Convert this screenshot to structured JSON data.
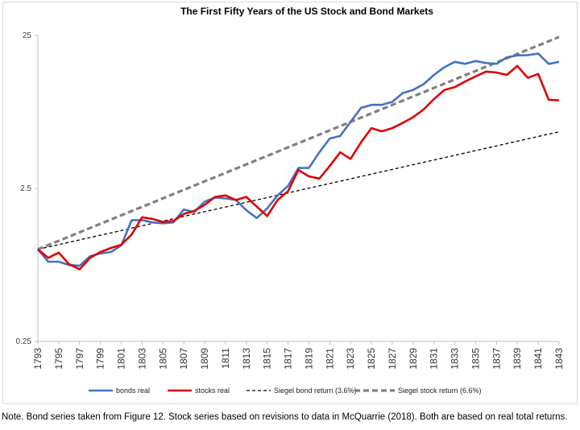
{
  "chart_data": {
    "type": "line",
    "title": "The First Fifty Years of the US Stock and Bond Markets",
    "yscale": "log",
    "ylim": [
      0.25,
      25
    ],
    "yticks": [
      {
        "value": 25,
        "label": "25"
      },
      {
        "value": 2.5,
        "label": "2.5"
      },
      {
        "value": 0.25,
        "label": "0.25"
      }
    ],
    "xlim": [
      1793,
      1843
    ],
    "xticks": [
      "1793",
      "1795",
      "1797",
      "1799",
      "1801",
      "1803",
      "1805",
      "1807",
      "1809",
      "1811",
      "1813",
      "1815",
      "1817",
      "1819",
      "1821",
      "1823",
      "1825",
      "1827",
      "1829",
      "1831",
      "1833",
      "1835",
      "1837",
      "1839",
      "1841",
      "1843"
    ],
    "grid": false,
    "legend_position": "bottom",
    "years": [
      1793,
      1794,
      1795,
      1796,
      1797,
      1798,
      1799,
      1800,
      1801,
      1802,
      1803,
      1804,
      1805,
      1806,
      1807,
      1808,
      1809,
      1810,
      1811,
      1812,
      1813,
      1814,
      1815,
      1816,
      1817,
      1818,
      1819,
      1820,
      1821,
      1822,
      1823,
      1824,
      1825,
      1826,
      1827,
      1828,
      1829,
      1830,
      1831,
      1832,
      1833,
      1834,
      1835,
      1836,
      1837,
      1838,
      1839,
      1840,
      1841,
      1842,
      1843
    ],
    "series": [
      {
        "name": "bonds real",
        "color": "#4472c4",
        "style": "solid",
        "values": [
          1.0,
          0.83,
          0.83,
          0.79,
          0.78,
          0.9,
          0.94,
          0.96,
          1.06,
          1.55,
          1.55,
          1.5,
          1.48,
          1.5,
          1.82,
          1.75,
          2.05,
          2.18,
          2.15,
          2.1,
          1.8,
          1.6,
          1.85,
          2.25,
          2.6,
          3.4,
          3.4,
          4.3,
          5.3,
          5.5,
          6.8,
          8.4,
          8.8,
          8.8,
          9.2,
          10.5,
          11.0,
          12.0,
          13.8,
          15.5,
          16.8,
          16.3,
          17.0,
          16.5,
          16.3,
          18.0,
          18.5,
          18.6,
          19.0,
          16.3,
          16.8
        ]
      },
      {
        "name": "stocks real",
        "color": "#e00000",
        "style": "solid",
        "values": [
          1.0,
          0.88,
          0.95,
          0.8,
          0.74,
          0.88,
          0.96,
          1.02,
          1.07,
          1.25,
          1.62,
          1.58,
          1.51,
          1.53,
          1.7,
          1.78,
          1.95,
          2.2,
          2.25,
          2.1,
          2.2,
          1.9,
          1.65,
          2.1,
          2.4,
          3.3,
          3.0,
          2.9,
          3.5,
          4.3,
          3.9,
          5.0,
          6.2,
          5.9,
          6.2,
          6.7,
          7.3,
          8.2,
          9.6,
          11.0,
          11.5,
          12.5,
          13.5,
          14.5,
          14.3,
          13.8,
          15.8,
          13.2,
          14.0,
          9.5,
          9.4
        ]
      },
      {
        "name": "Siegel bond return (3.6%)",
        "color": "#000000",
        "style": "dashed",
        "rate": 0.036,
        "start": 1.0
      },
      {
        "name": "Siegel stock return (6.6%)",
        "color": "#808080",
        "style": "dashed-thick",
        "rate": 0.066,
        "start": 1.0
      }
    ]
  },
  "note": "Note. Bond series taken from Figure 12.  Stock series based on revisions to data in McQuarrie (2018). Both are based on real total returns."
}
